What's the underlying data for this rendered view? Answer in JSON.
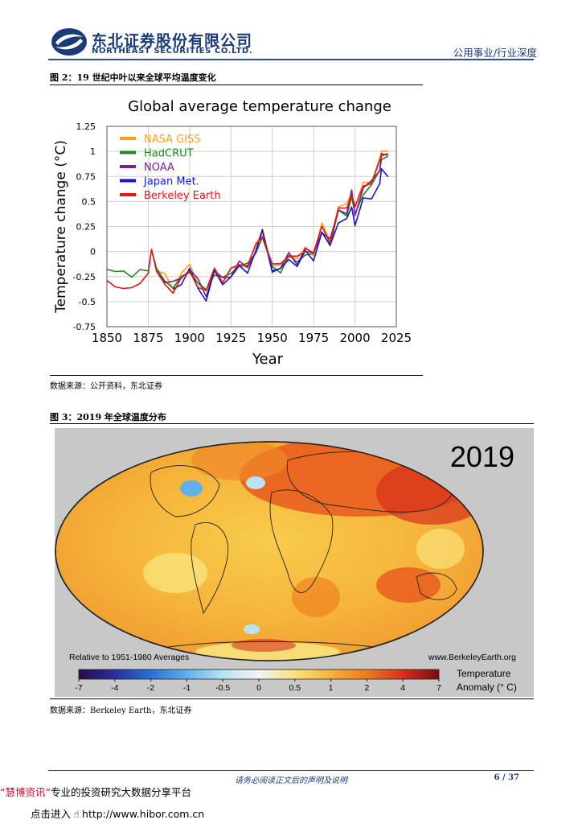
{
  "header": {
    "company_cn": "东北证券股份有限公司",
    "company_en": "NORTHEAST SECURITIES CO.LTD.",
    "report_type": "公用事业/行业深度",
    "brand_color": "#1b3a7a"
  },
  "figure2": {
    "caption": "图 2：19 世纪中叶以来全球平均温度变化",
    "source": "数据来源：公开资料，东北证券"
  },
  "figure3": {
    "caption": "图 3：2019 年全球温度分布",
    "source": "数据来源：Berkeley Earth，东北证券",
    "map": {
      "year_label": "2019",
      "baseline_note": "Relative to 1951-1980 Averages",
      "website": "www.BerkeleyEarth.org",
      "legend_title_line1": "Temperature",
      "legend_title_line2": "Anomaly (° C)",
      "legend_ticks": [
        "-7",
        "-4",
        "-2",
        "-1",
        "-0.5",
        "0",
        "0.5",
        "1",
        "2",
        "4",
        "7"
      ],
      "legend_colors": [
        "#2a0a4a",
        "#2b2e9e",
        "#2a6fd6",
        "#5fb0ec",
        "#b7e3f4",
        "#f4f4f4",
        "#f9e27a",
        "#f5b13a",
        "#ee7a1e",
        "#d6301c",
        "#7a0a12"
      ]
    }
  },
  "chart_data": {
    "type": "line",
    "title": "Global average temperature change",
    "xlabel": "Year",
    "ylabel": "Temperature change (°C)",
    "xlim": [
      1850,
      2025
    ],
    "ylim": [
      -0.75,
      1.25
    ],
    "xticks": [
      "1850",
      "1875",
      "1900",
      "1925",
      "1950",
      "1975",
      "2000",
      "2025"
    ],
    "yticks": [
      "1.25",
      "1",
      "0.75",
      "0.5",
      "0.25",
      "0",
      "-0.25",
      "-0.5",
      "-0.75"
    ],
    "grid": true,
    "legend_position": "top-left",
    "x": [
      1850,
      1855,
      1860,
      1865,
      1870,
      1875,
      1877,
      1880,
      1885,
      1890,
      1895,
      1900,
      1905,
      1910,
      1915,
      1920,
      1925,
      1930,
      1935,
      1940,
      1944,
      1950,
      1955,
      1960,
      1965,
      1970,
      1975,
      1980,
      1985,
      1990,
      1995,
      1998,
      2000,
      2005,
      2010,
      2015,
      2016,
      2020
    ],
    "series": [
      {
        "name": "NASA GISS",
        "color": "#ff9e1b",
        "values": [
          null,
          null,
          null,
          null,
          null,
          null,
          null,
          -0.18,
          -0.25,
          -0.35,
          -0.22,
          -0.15,
          -0.28,
          -0.42,
          -0.18,
          -0.28,
          -0.2,
          -0.12,
          -0.15,
          0.05,
          0.2,
          -0.15,
          -0.15,
          -0.02,
          -0.1,
          0.05,
          -0.02,
          0.25,
          0.12,
          0.45,
          0.45,
          0.62,
          0.42,
          0.68,
          0.72,
          0.9,
          1.01,
          1.02
        ]
      },
      {
        "name": "HadCRUT",
        "color": "#1a8a1a",
        "values": [
          -0.15,
          -0.2,
          -0.22,
          -0.22,
          -0.2,
          -0.2,
          0.05,
          -0.2,
          -0.28,
          -0.35,
          -0.28,
          -0.18,
          -0.32,
          -0.4,
          -0.2,
          -0.28,
          -0.22,
          -0.12,
          -0.15,
          0.0,
          0.15,
          -0.18,
          -0.18,
          -0.05,
          -0.12,
          0.0,
          -0.05,
          0.2,
          0.08,
          0.38,
          0.38,
          0.55,
          0.35,
          0.6,
          0.65,
          0.8,
          0.95,
          0.92
        ]
      },
      {
        "name": "NOAA",
        "color": "#7a1f8f",
        "values": [
          null,
          null,
          null,
          null,
          null,
          null,
          null,
          -0.2,
          -0.28,
          -0.33,
          -0.25,
          -0.17,
          -0.3,
          -0.42,
          -0.2,
          -0.28,
          -0.22,
          -0.12,
          -0.16,
          0.02,
          0.18,
          -0.17,
          -0.16,
          -0.04,
          -0.1,
          0.02,
          -0.03,
          0.22,
          0.1,
          0.42,
          0.4,
          0.58,
          0.38,
          0.64,
          0.68,
          0.84,
          0.96,
          0.95
        ]
      },
      {
        "name": "Japan Met.",
        "color": "#1515d6",
        "values": [
          null,
          null,
          null,
          null,
          null,
          null,
          null,
          null,
          null,
          -0.38,
          -0.3,
          -0.2,
          -0.35,
          -0.48,
          -0.22,
          -0.3,
          -0.26,
          -0.16,
          -0.18,
          -0.02,
          0.22,
          -0.18,
          -0.2,
          -0.06,
          -0.14,
          -0.02,
          -0.06,
          0.18,
          0.05,
          0.32,
          0.3,
          0.45,
          0.28,
          0.5,
          0.55,
          0.68,
          0.8,
          0.78
        ]
      },
      {
        "name": "Berkeley Earth",
        "color": "#e8141a",
        "values": [
          -0.3,
          -0.32,
          -0.4,
          -0.35,
          -0.3,
          -0.25,
          0.05,
          -0.2,
          -0.35,
          -0.38,
          -0.28,
          -0.2,
          -0.33,
          -0.42,
          -0.15,
          -0.3,
          -0.2,
          -0.1,
          -0.15,
          0.05,
          0.18,
          -0.15,
          -0.12,
          -0.02,
          -0.08,
          0.02,
          0.0,
          0.22,
          0.12,
          0.42,
          0.42,
          0.6,
          0.42,
          0.66,
          0.7,
          0.88,
          0.98,
          0.98
        ]
      }
    ]
  },
  "footer": {
    "disclaimer": "请务必阅读正文后的声明及说明",
    "page": "6 / 37",
    "brand_quote_open": "“",
    "brand_name": "慧博资讯",
    "brand_quote_close": "”",
    "brand_tagline": "专业的投资研究大数据分享平台",
    "link_prefix": "点击进入",
    "link_url": "http://www.hibor.com.cn"
  }
}
